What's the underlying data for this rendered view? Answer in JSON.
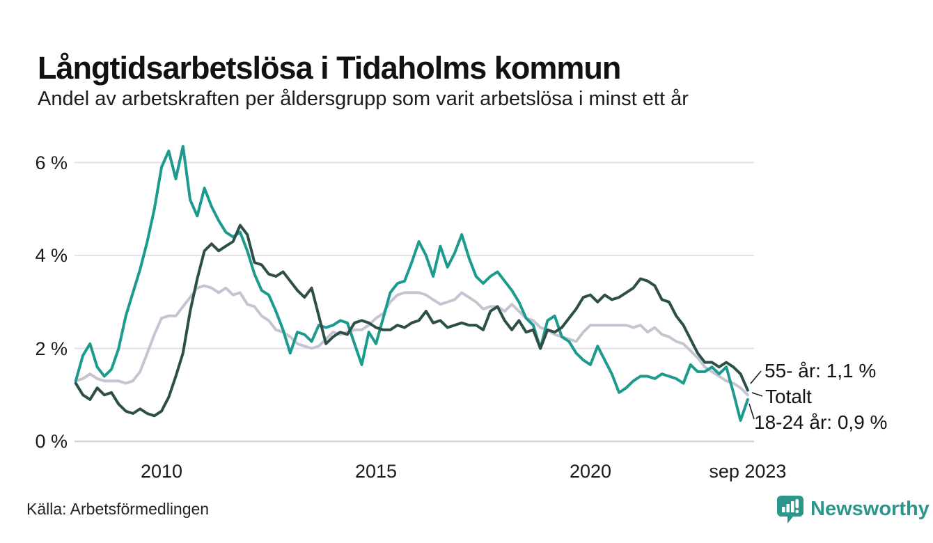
{
  "header": {
    "title": "Långtidsarbetslösa i Tidaholms kommun",
    "subtitle": "Andel av arbetskraften per åldersgrupp som varit arbetslösa i minst ett år"
  },
  "chart_data": {
    "type": "line",
    "title": "Långtidsarbetslösa i Tidaholms kommun",
    "subtitle": "Andel av arbetskraften per åldersgrupp som varit arbetslösa i minst ett år",
    "unit": "% av arbetskraften",
    "x_start": 2008.0,
    "x_step": 0.166667,
    "x_end_label": "sep 2023",
    "xlim": [
      2007.9,
      2024.3
    ],
    "ylim": [
      0,
      6.8
    ],
    "grid": "horizontal",
    "legend_position": "end-of-line-annotations",
    "x_ticks": [
      {
        "value": 2010,
        "label": "2010"
      },
      {
        "value": 2015,
        "label": "2015"
      },
      {
        "value": 2020,
        "label": "2020"
      },
      {
        "value": 2023.667,
        "label": "sep 2023"
      }
    ],
    "y_ticks": [
      {
        "value": 0,
        "label": "0 %"
      },
      {
        "value": 2,
        "label": "2 %"
      },
      {
        "value": 4,
        "label": "4 %"
      },
      {
        "value": 6,
        "label": "6 %"
      }
    ],
    "series": [
      {
        "name": "Totalt",
        "color": "#c6c4d1",
        "last_value": 1.0,
        "values": [
          1.3,
          1.35,
          1.45,
          1.35,
          1.3,
          1.3,
          1.3,
          1.25,
          1.3,
          1.5,
          1.9,
          2.3,
          2.65,
          2.7,
          2.7,
          2.9,
          3.1,
          3.3,
          3.35,
          3.3,
          3.2,
          3.3,
          3.15,
          3.2,
          2.95,
          2.9,
          2.7,
          2.6,
          2.4,
          2.35,
          2.25,
          2.1,
          2.05,
          2.0,
          2.05,
          2.2,
          2.35,
          2.3,
          2.35,
          2.4,
          2.4,
          2.5,
          2.65,
          2.75,
          3.0,
          3.15,
          3.2,
          3.2,
          3.2,
          3.15,
          3.05,
          2.95,
          3.0,
          3.05,
          3.2,
          3.1,
          3.0,
          2.85,
          2.9,
          2.9,
          2.8,
          2.95,
          2.8,
          2.65,
          2.6,
          2.45,
          2.4,
          2.3,
          2.25,
          2.2,
          2.15,
          2.35,
          2.5,
          2.5,
          2.5,
          2.5,
          2.5,
          2.5,
          2.45,
          2.5,
          2.35,
          2.45,
          2.3,
          2.25,
          2.15,
          2.1,
          1.95,
          1.8,
          1.6,
          1.5,
          1.4,
          1.3,
          1.25,
          1.15,
          1.0
        ]
      },
      {
        "name": "18-24 år",
        "color": "#1d9a8e",
        "last_value": 0.9,
        "values": [
          1.3,
          1.85,
          2.1,
          1.6,
          1.4,
          1.55,
          2.0,
          2.7,
          3.2,
          3.7,
          4.3,
          5.0,
          5.9,
          6.25,
          5.65,
          6.35,
          5.2,
          4.85,
          5.45,
          5.05,
          4.75,
          4.5,
          4.4,
          4.5,
          4.1,
          3.6,
          3.25,
          3.15,
          2.8,
          2.4,
          1.9,
          2.35,
          2.3,
          2.15,
          2.5,
          2.45,
          2.5,
          2.6,
          2.55,
          2.1,
          1.65,
          2.35,
          2.1,
          2.65,
          3.2,
          3.4,
          3.45,
          3.85,
          4.3,
          4.0,
          3.55,
          4.2,
          3.75,
          4.05,
          4.45,
          3.95,
          3.55,
          3.4,
          3.55,
          3.65,
          3.45,
          3.25,
          3.0,
          2.65,
          2.5,
          2.0,
          2.6,
          2.7,
          2.25,
          2.15,
          1.9,
          1.75,
          1.65,
          2.05,
          1.75,
          1.45,
          1.05,
          1.15,
          1.3,
          1.4,
          1.4,
          1.35,
          1.45,
          1.4,
          1.35,
          1.25,
          1.65,
          1.5,
          1.5,
          1.6,
          1.45,
          1.6,
          1.05,
          0.45,
          0.9
        ]
      },
      {
        "name": "55- år",
        "color": "#2d4f46",
        "last_value": 1.1,
        "values": [
          1.25,
          1.0,
          0.9,
          1.15,
          1.0,
          1.05,
          0.8,
          0.65,
          0.6,
          0.7,
          0.6,
          0.55,
          0.65,
          0.95,
          1.4,
          1.9,
          2.8,
          3.5,
          4.1,
          4.25,
          4.1,
          4.2,
          4.3,
          4.65,
          4.45,
          3.85,
          3.8,
          3.6,
          3.55,
          3.65,
          3.45,
          3.25,
          3.1,
          3.3,
          2.7,
          2.1,
          2.25,
          2.35,
          2.3,
          2.55,
          2.6,
          2.55,
          2.45,
          2.4,
          2.4,
          2.5,
          2.45,
          2.55,
          2.6,
          2.8,
          2.55,
          2.6,
          2.45,
          2.5,
          2.55,
          2.5,
          2.5,
          2.4,
          2.8,
          2.9,
          2.6,
          2.4,
          2.6,
          2.35,
          2.4,
          2.0,
          2.4,
          2.35,
          2.45,
          2.65,
          2.85,
          3.1,
          3.15,
          3.0,
          3.15,
          3.05,
          3.1,
          3.2,
          3.3,
          3.5,
          3.45,
          3.35,
          3.05,
          3.0,
          2.7,
          2.5,
          2.2,
          1.9,
          1.7,
          1.7,
          1.6,
          1.7,
          1.6,
          1.45,
          1.1
        ]
      }
    ],
    "annotations": [
      {
        "label": "55- år: 1,1 %"
      },
      {
        "label": "Totalt"
      },
      {
        "label": "18-24 år: 0,9 %"
      }
    ]
  },
  "footer": {
    "source": "Källa: Arbetsförmedlingen",
    "brand": "Newsworthy"
  },
  "colors": {
    "accent_teal": "#1d9a8e",
    "dark_green": "#2d4f46",
    "light_gray_series": "#c6c4d1",
    "gridline": "#e2e2e6",
    "baseline": "#d2d2d7",
    "brand_teal": "#2d968c"
  }
}
